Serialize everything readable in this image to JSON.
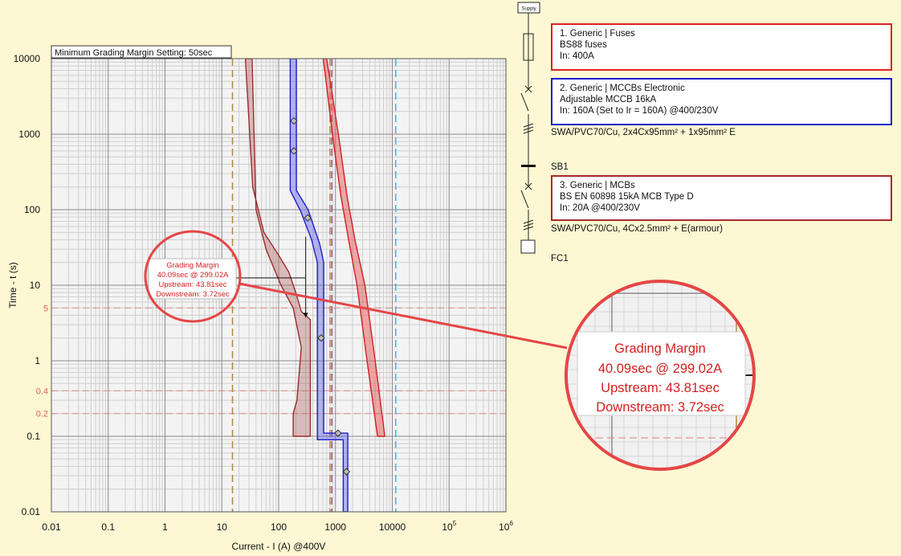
{
  "chart_data": {
    "type": "line",
    "scale": "log-log",
    "settings_label": "Minimum Grading Margin Setting: 50sec",
    "xlabel": "Current - I (A) @400V",
    "ylabel": "Time - t (s)",
    "xlim": [
      0.01,
      1000000
    ],
    "ylim": [
      0.01,
      10000
    ],
    "x_ticks": [
      {
        "v": 0.01,
        "label": "0.01"
      },
      {
        "v": 0.1,
        "label": "0.1"
      },
      {
        "v": 1,
        "label": "1"
      },
      {
        "v": 10,
        "label": "10"
      },
      {
        "v": 100,
        "label": "100"
      },
      {
        "v": 1000,
        "label": "1000"
      },
      {
        "v": 10000,
        "label": "10000"
      },
      {
        "v": 100000,
        "label": "10",
        "sup": "5"
      },
      {
        "v": 1000000,
        "label": "10",
        "sup": "6"
      }
    ],
    "y_ticks": [
      {
        "v": 0.01,
        "label": "0.01"
      },
      {
        "v": 0.1,
        "label": "0.1"
      },
      {
        "v": 1,
        "label": "1"
      },
      {
        "v": 10,
        "label": "10"
      },
      {
        "v": 100,
        "label": "100"
      },
      {
        "v": 1000,
        "label": "1000"
      },
      {
        "v": 10000,
        "label": "10000"
      }
    ],
    "y_reference_lines": [
      {
        "t": 5,
        "label": "5"
      },
      {
        "t": 0.4,
        "label": "0.4"
      },
      {
        "t": 0.2,
        "label": "0.2"
      }
    ],
    "x_reference_lines": [
      {
        "i": 15.4,
        "color": "#b3893a"
      },
      {
        "i": 800,
        "color": "#b3893a"
      },
      {
        "i": 860,
        "color": "#9e4f8f"
      },
      {
        "i": 11500,
        "color": "#3ab5e6"
      }
    ],
    "bands": [
      {
        "name": "BS EN 60898 MCB Type D",
        "stroke": "#9a2c2c",
        "fill": "rgba(170, 80, 80, 0.35)",
        "lower": [
          [
            26,
            10000
          ],
          [
            35,
            200
          ],
          [
            55,
            50
          ],
          [
            100,
            25
          ],
          [
            150,
            15
          ],
          [
            200,
            8
          ],
          [
            250,
            4.5
          ],
          [
            360,
            3.5
          ],
          [
            360,
            0.1
          ]
        ],
        "upper": [
          [
            180,
            0.1
          ],
          [
            180,
            0.2
          ],
          [
            210,
            0.3
          ],
          [
            250,
            1.5
          ],
          [
            180,
            5
          ],
          [
            110,
            10
          ],
          [
            60,
            30
          ],
          [
            40,
            100
          ],
          [
            34,
            10000
          ]
        ]
      },
      {
        "name": "Adjustable MCCB 16kA",
        "stroke": "#1f1fc8",
        "fill": "rgba(100, 100, 235, 0.45)",
        "lower": [
          [
            160,
            10000
          ],
          [
            160,
            180
          ],
          [
            245,
            95
          ],
          [
            380,
            40
          ],
          [
            480,
            20
          ],
          [
            480,
            0.09
          ],
          [
            1370,
            0.09
          ],
          [
            1370,
            0.01
          ]
        ],
        "upper": [
          [
            1650,
            0.01
          ],
          [
            1650,
            0.11
          ],
          [
            620,
            0.11
          ],
          [
            620,
            20
          ],
          [
            530,
            35
          ],
          [
            330,
            100
          ],
          [
            205,
            180
          ],
          [
            205,
            10000
          ]
        ]
      },
      {
        "name": "BS88 fuses 400A",
        "stroke": "#d21f1f",
        "fill": "rgba(230, 90, 90, 0.5)",
        "lower": [
          [
            610,
            10000
          ],
          [
            900,
            900
          ],
          [
            1250,
            150
          ],
          [
            1700,
            40
          ],
          [
            2400,
            10
          ],
          [
            3600,
            1
          ],
          [
            5500,
            0.1
          ]
        ],
        "upper": [
          [
            7400,
            0.1
          ],
          [
            5000,
            1
          ],
          [
            3300,
            10
          ],
          [
            2200,
            40
          ],
          [
            1600,
            150
          ],
          [
            1150,
            900
          ],
          [
            700,
            10000
          ]
        ]
      }
    ],
    "markers": [
      {
        "i": 185,
        "t": 1500
      },
      {
        "i": 185,
        "t": 600
      },
      {
        "i": 325,
        "t": 78
      },
      {
        "i": 560,
        "t": 2
      },
      {
        "i": 1110,
        "t": 0.11
      },
      {
        "i": 1560,
        "t": 0.034
      }
    ],
    "margin_measure": {
      "i": 299.02,
      "t_top": 43.81,
      "t_bottom": 3.72,
      "leader_t": 12.5
    },
    "margin_box": {
      "title": "Grading Margin",
      "line1": "40.09sec @ 299.02A",
      "line2": "Upstream: 43.81sec",
      "line3": "Downstream: 3.72sec"
    }
  },
  "single_line_diagram": {
    "supply_label": "Supply",
    "devices": [
      {
        "line1": "1. Generic | Fuses",
        "line2": "BS88 fuses",
        "line3": "In: 400A",
        "border": "#e02020"
      },
      {
        "line1": "2. Generic | MCCBs Electronic",
        "line2": "Adjustable MCCB 16kA",
        "line3": "In: 160A (Set to Ir = 160A) @400/230V",
        "border": "#1c1ccc"
      },
      {
        "line1": "3. Generic | MCBs",
        "line2": "BS EN 60898 15kA MCB Type D",
        "line3": "In: 20A @400/230V",
        "border": "#a52a2a"
      }
    ],
    "cable_1": "SWA/PVC70/Cu, 2x4Cx95mm² + 1x95mm² E",
    "busbar_label": "SB1",
    "cable_2": "SWA/PVC70/Cu, 4Cx2.5mm² + E(armour)",
    "load_label": "FC1"
  },
  "colors": {
    "background": "#fdf8d3",
    "plot_bg": "#f3f3f3",
    "callout": "#e54646",
    "margin_text": "#d42020"
  }
}
